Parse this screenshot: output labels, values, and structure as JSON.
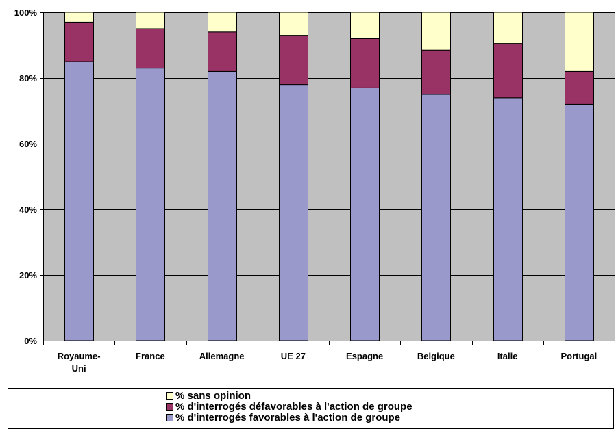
{
  "chart_data": {
    "type": "bar",
    "stacked": true,
    "percent": true,
    "categories": [
      "Royaume-Uni",
      "France",
      "Allemagne",
      "UE 27",
      "Espagne",
      "Belgique",
      "Italie",
      "Portugal"
    ],
    "category_lines": [
      [
        "Royaume-",
        "Uni"
      ],
      [
        "France"
      ],
      [
        "Allemagne"
      ],
      [
        "UE 27"
      ],
      [
        "Espagne"
      ],
      [
        "Belgique"
      ],
      [
        "Italie"
      ],
      [
        "Portugal"
      ]
    ],
    "series": [
      {
        "name": "% d'interrogés favorables à l'action de groupe",
        "values": [
          85,
          83,
          82,
          78,
          77,
          75,
          74,
          72
        ],
        "color": "#9999cc"
      },
      {
        "name": "% d'interrogés défavorables à l'action de groupe",
        "values": [
          12,
          12,
          12,
          15,
          15,
          13.5,
          16.5,
          10
        ],
        "color": "#993366"
      },
      {
        "name": "% sans opinion",
        "values": [
          3,
          5,
          6,
          7,
          8,
          11.5,
          9.5,
          18
        ],
        "color": "#ffffcc"
      }
    ],
    "legend_order": [
      2,
      1,
      0
    ],
    "y_ticks": [
      "0%",
      "20%",
      "40%",
      "60%",
      "80%",
      "100%"
    ],
    "ylim": [
      0,
      100
    ],
    "grid": true,
    "legend_position": "bottom",
    "plot_background": "#c0c0c0"
  }
}
